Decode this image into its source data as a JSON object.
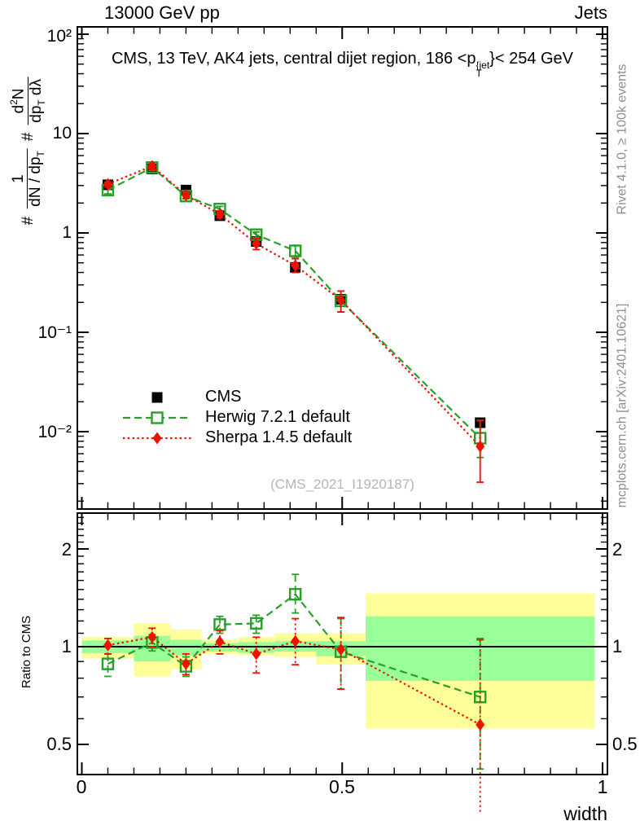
{
  "header": {
    "left": "13000 GeV pp",
    "right": "Jets"
  },
  "title": {
    "pre": "CMS, 13 TeV, AK4 jets, central dijet region, 186 <p",
    "sup": "{jet",
    "sub": "T",
    "post": "}< 254 GeV"
  },
  "ylabel_main": {
    "hash1": "#",
    "f1_num": "1",
    "f1_den": "dN / dp",
    "f1_den_sub": "T",
    "hash2": "#",
    "f2_num_a": "d",
    "f2_num_sup": "2",
    "f2_num_b": "N",
    "f2_den_a": "dp",
    "f2_den_sub": "T",
    "f2_den_b": " dλ"
  },
  "ylabel_ratio": "Ratio to CMS",
  "xlabel": "width",
  "watermark": "(CMS_2021_I1920187)",
  "side_notes": {
    "top": "Rivet 4.1.0, ≥ 100k events",
    "bottom": "mcplots.cern.ch [arXiv:2401.10621]"
  },
  "colors": {
    "cms": "#000000",
    "herwig": "#28a028",
    "sherpa": "#ee1100",
    "band_yellow": "#ffff99",
    "band_green": "#99ff99",
    "gray_text": "#8e8e8e",
    "watermark": "#b5b5b5"
  },
  "legend": {
    "items": [
      {
        "label": "CMS"
      },
      {
        "label": "Herwig 7.2.1 default"
      },
      {
        "label": "Sherpa 1.4.5 default"
      }
    ]
  },
  "chart_data": {
    "type": "line",
    "x": [
      0.05,
      0.135,
      0.2,
      0.265,
      0.335,
      0.41,
      0.4975,
      0.765
    ],
    "xlim": [
      0,
      1
    ],
    "xticks": {
      "major": [
        0,
        0.5,
        1
      ],
      "labels": [
        "0",
        "0.5",
        "1"
      ],
      "minor_step": 0.05
    },
    "main_panel": {
      "ylog": true,
      "ylim": [
        0.00166,
        118
      ],
      "ytick_labels": [
        "10²",
        "10",
        "1",
        "10⁻¹",
        "10⁻²"
      ],
      "ytick_values": [
        100,
        10,
        1,
        0.1,
        0.01
      ],
      "series": [
        {
          "name": "CMS",
          "marker": "square-filled",
          "color_key": "cms",
          "line": "none",
          "y": [
            3.05,
            4.4,
            2.7,
            1.49,
            0.82,
            0.45,
            0.215,
            0.0123
          ],
          "err_lo": [
            2.85,
            4.15,
            2.55,
            1.42,
            0.79,
            0.43,
            0.205,
            0.0112
          ],
          "err_hi": [
            3.25,
            4.65,
            2.85,
            1.56,
            0.86,
            0.47,
            0.225,
            0.0134
          ]
        },
        {
          "name": "Herwig 7.2.1 default",
          "marker": "square-open",
          "color_key": "herwig",
          "line": "dashed",
          "y": [
            2.7,
            4.55,
            2.35,
            1.74,
            0.96,
            0.66,
            0.207,
            0.0086
          ],
          "err_lo": [
            2.47,
            4.23,
            2.2,
            1.64,
            0.9,
            0.57,
            0.16,
            0.0055
          ],
          "err_hi": [
            2.9,
            4.75,
            2.53,
            1.85,
            1.02,
            0.75,
            0.26,
            0.013
          ]
        },
        {
          "name": "Sherpa 1.4.5 default",
          "marker": "diamond-filled",
          "color_key": "sherpa",
          "line": "dotted",
          "y": [
            3.1,
            4.7,
            2.4,
            1.54,
            0.78,
            0.47,
            0.211,
            0.0071
          ],
          "err_lo": [
            2.9,
            4.36,
            2.23,
            1.42,
            0.68,
            0.4,
            0.16,
            0.0031
          ],
          "err_hi": [
            3.23,
            4.97,
            2.59,
            1.67,
            0.88,
            0.55,
            0.26,
            0.0129
          ]
        }
      ]
    },
    "ratio_panel": {
      "ylog": true,
      "ylim": [
        0.404,
        2.58
      ],
      "ytick_labels": [
        "2",
        "1",
        "0.5"
      ],
      "ytick_values": [
        2,
        1,
        0.5
      ],
      "ref_line": 1,
      "bands": {
        "edges": [
          0,
          0.1,
          0.17,
          0.23,
          0.3,
          0.37,
          0.45,
          0.545,
          0.985
        ],
        "yellow": [
          [
            0.92,
            1.07
          ],
          [
            0.81,
            1.18
          ],
          [
            0.85,
            1.13
          ],
          [
            0.95,
            1.05
          ],
          [
            0.94,
            1.07
          ],
          [
            0.93,
            1.1
          ],
          [
            0.88,
            1.1
          ],
          [
            0.56,
            1.46
          ]
        ],
        "green": [
          [
            0.955,
            1.045
          ],
          [
            0.9,
            1.08
          ],
          [
            0.94,
            1.05
          ],
          [
            0.966,
            1.025
          ],
          [
            0.957,
            1.033
          ],
          [
            0.966,
            1.04
          ],
          [
            0.935,
            1.04
          ],
          [
            0.785,
            1.24
          ]
        ]
      },
      "series": [
        {
          "name": "Herwig 7.2.1 default",
          "marker": "square-open",
          "color_key": "herwig",
          "line": "dashed",
          "y": [
            0.885,
            1.03,
            0.87,
            1.17,
            1.18,
            1.45,
            0.965,
            0.7
          ],
          "err_lo": [
            0.81,
            0.97,
            0.81,
            1.1,
            1.1,
            1.27,
            0.74,
            0.42
          ],
          "err_hi": [
            0.95,
            1.09,
            0.93,
            1.24,
            1.25,
            1.67,
            1.22,
            1.06
          ]
        },
        {
          "name": "Sherpa 1.4.5 default",
          "marker": "diamond-filled",
          "color_key": "sherpa",
          "line": "dotted",
          "y": [
            1.01,
            1.07,
            0.885,
            1.035,
            0.95,
            1.04,
            0.98,
            0.575
          ],
          "err_lo": [
            0.95,
            1.0,
            0.82,
            0.95,
            0.83,
            0.88,
            0.74,
            0.31
          ],
          "err_hi": [
            1.06,
            1.14,
            0.95,
            1.12,
            1.07,
            1.22,
            1.23,
            1.05
          ]
        }
      ]
    }
  }
}
